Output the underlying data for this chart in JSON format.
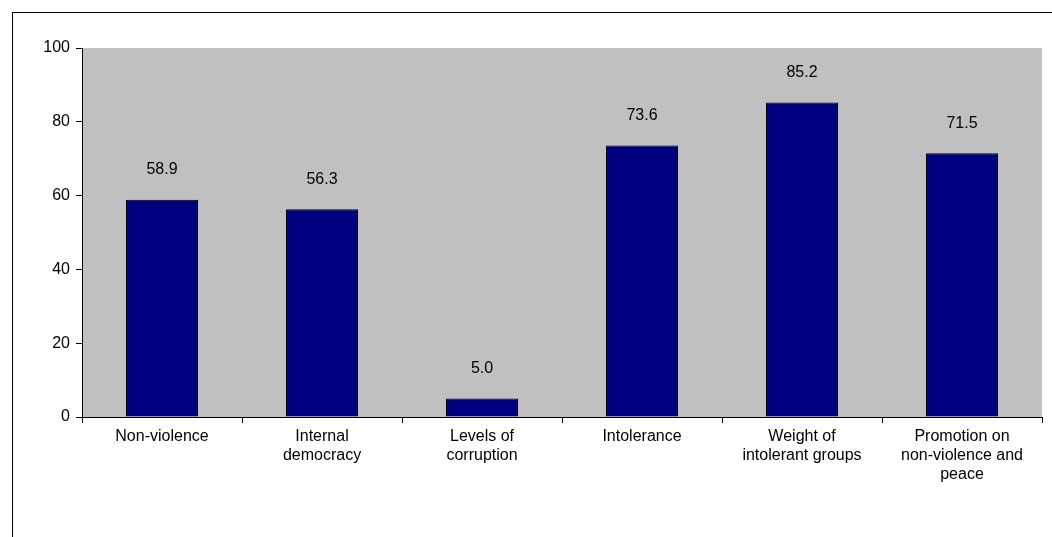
{
  "chart_data": {
    "type": "bar",
    "categories": [
      "Non-violence",
      "Internal democracy",
      "Levels of corruption",
      "Intolerance",
      "Weight of intolerant groups",
      "Promotion on non-violence and peace"
    ],
    "values": [
      58.9,
      56.3,
      5.0,
      73.6,
      85.2,
      71.5
    ],
    "value_labels": [
      "58.9",
      "56.3",
      "5.0",
      "73.6",
      "85.2",
      "71.5"
    ],
    "color": "#000080",
    "ylim": [
      0,
      100
    ],
    "yticks": [
      0,
      20,
      40,
      60,
      80,
      100
    ],
    "grid": false,
    "legend": false
  }
}
